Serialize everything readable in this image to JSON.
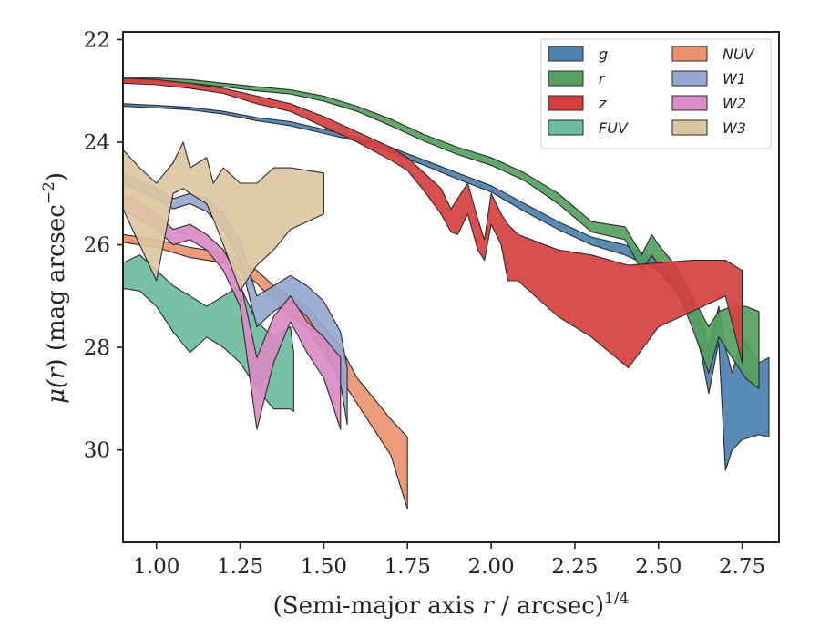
{
  "chart_data": {
    "type": "area",
    "xlabel": "(Semi-major axis r / arcsec)",
    "xlabel_parts": {
      "prefix": "(Semi-major axis ",
      "var": "r",
      "suffix": " / arcsec)",
      "sup": "1/4"
    },
    "ylabel_parts": {
      "mu": "μ(",
      "var": "r",
      "mid": ") (mag arcsec",
      "sup": "−2",
      "end": ")"
    },
    "ylabel": "μ(r) (mag arcsec−2)",
    "xlim": [
      0.9,
      2.86
    ],
    "ylim": [
      31.8,
      21.85
    ],
    "y_inverted": true,
    "xticks": [
      1.0,
      1.25,
      1.5,
      1.75,
      2.0,
      2.25,
      2.5,
      2.75
    ],
    "xtick_labels": [
      "1.00",
      "1.25",
      "1.50",
      "1.75",
      "2.00",
      "2.25",
      "2.50",
      "2.75"
    ],
    "yticks": [
      22,
      24,
      26,
      28,
      30
    ],
    "ytick_labels": [
      "22",
      "24",
      "26",
      "28",
      "30"
    ],
    "grid": false,
    "legend_position": "top-right",
    "legend_columns": 2,
    "series": [
      {
        "name": "g",
        "color": "#4c81b0",
        "x": [
          0.9,
          1.0,
          1.1,
          1.2,
          1.3,
          1.4,
          1.5,
          1.6,
          1.7,
          1.8,
          1.9,
          2.0,
          2.1,
          2.2,
          2.3,
          2.4,
          2.5,
          2.55,
          2.6,
          2.63,
          2.65,
          2.68,
          2.7,
          2.72,
          2.75,
          2.8,
          2.83
        ],
        "lower": [
          23.25,
          23.28,
          23.32,
          23.4,
          23.52,
          23.6,
          23.75,
          23.9,
          24.1,
          24.35,
          24.6,
          24.85,
          25.2,
          25.55,
          25.85,
          26.0,
          26.3,
          26.6,
          27.0,
          27.5,
          28.0,
          27.2,
          28.0,
          28.5,
          27.8,
          28.3,
          28.2
        ],
        "upper": [
          23.3,
          23.33,
          23.37,
          23.45,
          23.58,
          23.68,
          23.83,
          23.98,
          24.2,
          24.45,
          24.72,
          24.97,
          25.35,
          25.7,
          26.0,
          26.2,
          26.5,
          26.9,
          27.4,
          28.2,
          28.9,
          27.9,
          30.4,
          30.0,
          29.8,
          29.7,
          29.75
        ]
      },
      {
        "name": "r",
        "color": "#55a060",
        "x": [
          0.9,
          1.0,
          1.1,
          1.2,
          1.3,
          1.4,
          1.5,
          1.6,
          1.7,
          1.8,
          1.9,
          2.0,
          2.1,
          2.2,
          2.3,
          2.4,
          2.45,
          2.48,
          2.5,
          2.55,
          2.6,
          2.65,
          2.68,
          2.72,
          2.76,
          2.8
        ],
        "lower": [
          22.75,
          22.75,
          22.78,
          22.85,
          22.92,
          22.98,
          23.1,
          23.3,
          23.55,
          23.85,
          24.1,
          24.3,
          24.6,
          25.0,
          25.55,
          25.65,
          26.2,
          25.8,
          26.0,
          26.4,
          27.0,
          27.6,
          27.3,
          27.2,
          27.2,
          27.3
        ],
        "upper": [
          22.82,
          22.82,
          22.85,
          22.92,
          23.0,
          23.06,
          23.2,
          23.4,
          23.68,
          23.98,
          24.24,
          24.45,
          24.75,
          25.2,
          25.75,
          25.9,
          26.5,
          26.2,
          26.4,
          26.8,
          27.6,
          28.5,
          27.8,
          28.2,
          28.6,
          28.8
        ]
      },
      {
        "name": "z",
        "color": "#d64040",
        "x": [
          0.9,
          1.0,
          1.1,
          1.2,
          1.3,
          1.4,
          1.5,
          1.6,
          1.7,
          1.75,
          1.8,
          1.85,
          1.88,
          1.9,
          1.93,
          1.96,
          1.98,
          2.0,
          2.03,
          2.05,
          2.08,
          2.2,
          2.3,
          2.41,
          2.5,
          2.6,
          2.7,
          2.75
        ],
        "lower": [
          22.75,
          22.78,
          22.85,
          22.95,
          23.1,
          23.25,
          23.5,
          23.8,
          24.1,
          24.3,
          24.6,
          24.9,
          25.3,
          25.1,
          24.8,
          25.5,
          25.9,
          25.0,
          25.4,
          25.6,
          25.8,
          26.1,
          26.2,
          26.4,
          26.35,
          26.3,
          26.3,
          26.5
        ],
        "upper": [
          22.85,
          22.88,
          22.95,
          23.05,
          23.25,
          23.4,
          23.7,
          24.0,
          24.35,
          24.55,
          24.95,
          25.4,
          25.75,
          25.8,
          25.4,
          26.1,
          26.3,
          25.6,
          26.0,
          26.7,
          26.7,
          27.4,
          27.8,
          28.4,
          27.6,
          27.3,
          27.0,
          28.3
        ]
      },
      {
        "name": "FUV",
        "color": "#6cbca0",
        "x": [
          0.9,
          0.95,
          1.0,
          1.05,
          1.1,
          1.15,
          1.2,
          1.25,
          1.3,
          1.35,
          1.4,
          1.41
        ],
        "lower": [
          26.35,
          26.2,
          26.5,
          26.8,
          27.0,
          27.2,
          27.0,
          26.8,
          27.5,
          27.8,
          27.6,
          28.1
        ],
        "upper": [
          26.85,
          26.9,
          27.2,
          27.7,
          28.1,
          27.8,
          28.0,
          28.3,
          28.8,
          29.2,
          29.2,
          29.25
        ]
      },
      {
        "name": "NUV",
        "color": "#ea9270",
        "x": [
          0.9,
          1.0,
          1.1,
          1.2,
          1.25,
          1.3,
          1.35,
          1.4,
          1.45,
          1.5,
          1.55,
          1.6,
          1.65,
          1.7,
          1.75
        ],
        "lower": [
          25.8,
          25.9,
          26.05,
          26.15,
          26.3,
          26.5,
          26.8,
          27.0,
          27.2,
          27.6,
          28.0,
          28.6,
          29.0,
          29.4,
          29.75
        ],
        "upper": [
          25.95,
          26.05,
          26.25,
          26.35,
          26.5,
          26.75,
          27.1,
          27.4,
          27.6,
          28.1,
          28.6,
          29.1,
          29.6,
          30.1,
          31.15
        ]
      },
      {
        "name": "W1",
        "color": "#96a8d0",
        "x": [
          0.9,
          1.0,
          1.05,
          1.1,
          1.15,
          1.2,
          1.25,
          1.3,
          1.35,
          1.4,
          1.45,
          1.5,
          1.55,
          1.57
        ],
        "lower": [
          24.6,
          24.9,
          25.1,
          25.0,
          25.1,
          25.4,
          25.9,
          27.0,
          26.8,
          26.6,
          26.8,
          27.1,
          27.7,
          28.4
        ],
        "upper": [
          24.8,
          25.1,
          25.3,
          25.2,
          25.35,
          25.7,
          26.3,
          27.6,
          27.3,
          27.1,
          27.4,
          27.9,
          28.7,
          29.5
        ]
      },
      {
        "name": "W2",
        "color": "#da8cc4",
        "x": [
          0.9,
          1.0,
          1.05,
          1.1,
          1.15,
          1.2,
          1.25,
          1.3,
          1.35,
          1.4,
          1.45,
          1.5,
          1.55
        ],
        "lower": [
          25.0,
          25.4,
          25.7,
          25.6,
          25.8,
          26.1,
          26.7,
          28.2,
          27.4,
          27.0,
          27.5,
          27.8,
          28.2
        ],
        "upper": [
          25.3,
          25.7,
          26.0,
          25.9,
          26.1,
          26.5,
          27.2,
          29.6,
          28.3,
          27.5,
          28.1,
          28.6,
          29.6
        ]
      },
      {
        "name": "W3",
        "color": "#dcc6a2",
        "x": [
          0.9,
          0.95,
          1.0,
          1.05,
          1.08,
          1.1,
          1.15,
          1.17,
          1.2,
          1.25,
          1.3,
          1.35,
          1.4,
          1.5
        ],
        "lower": [
          24.15,
          24.5,
          24.8,
          24.4,
          24.0,
          24.5,
          24.3,
          24.8,
          24.5,
          24.8,
          24.8,
          24.5,
          24.5,
          24.6
        ],
        "upper": [
          25.3,
          26.0,
          26.7,
          25.0,
          24.9,
          25.0,
          25.2,
          25.5,
          26.0,
          26.9,
          26.4,
          26.1,
          25.7,
          25.4
        ]
      }
    ]
  }
}
